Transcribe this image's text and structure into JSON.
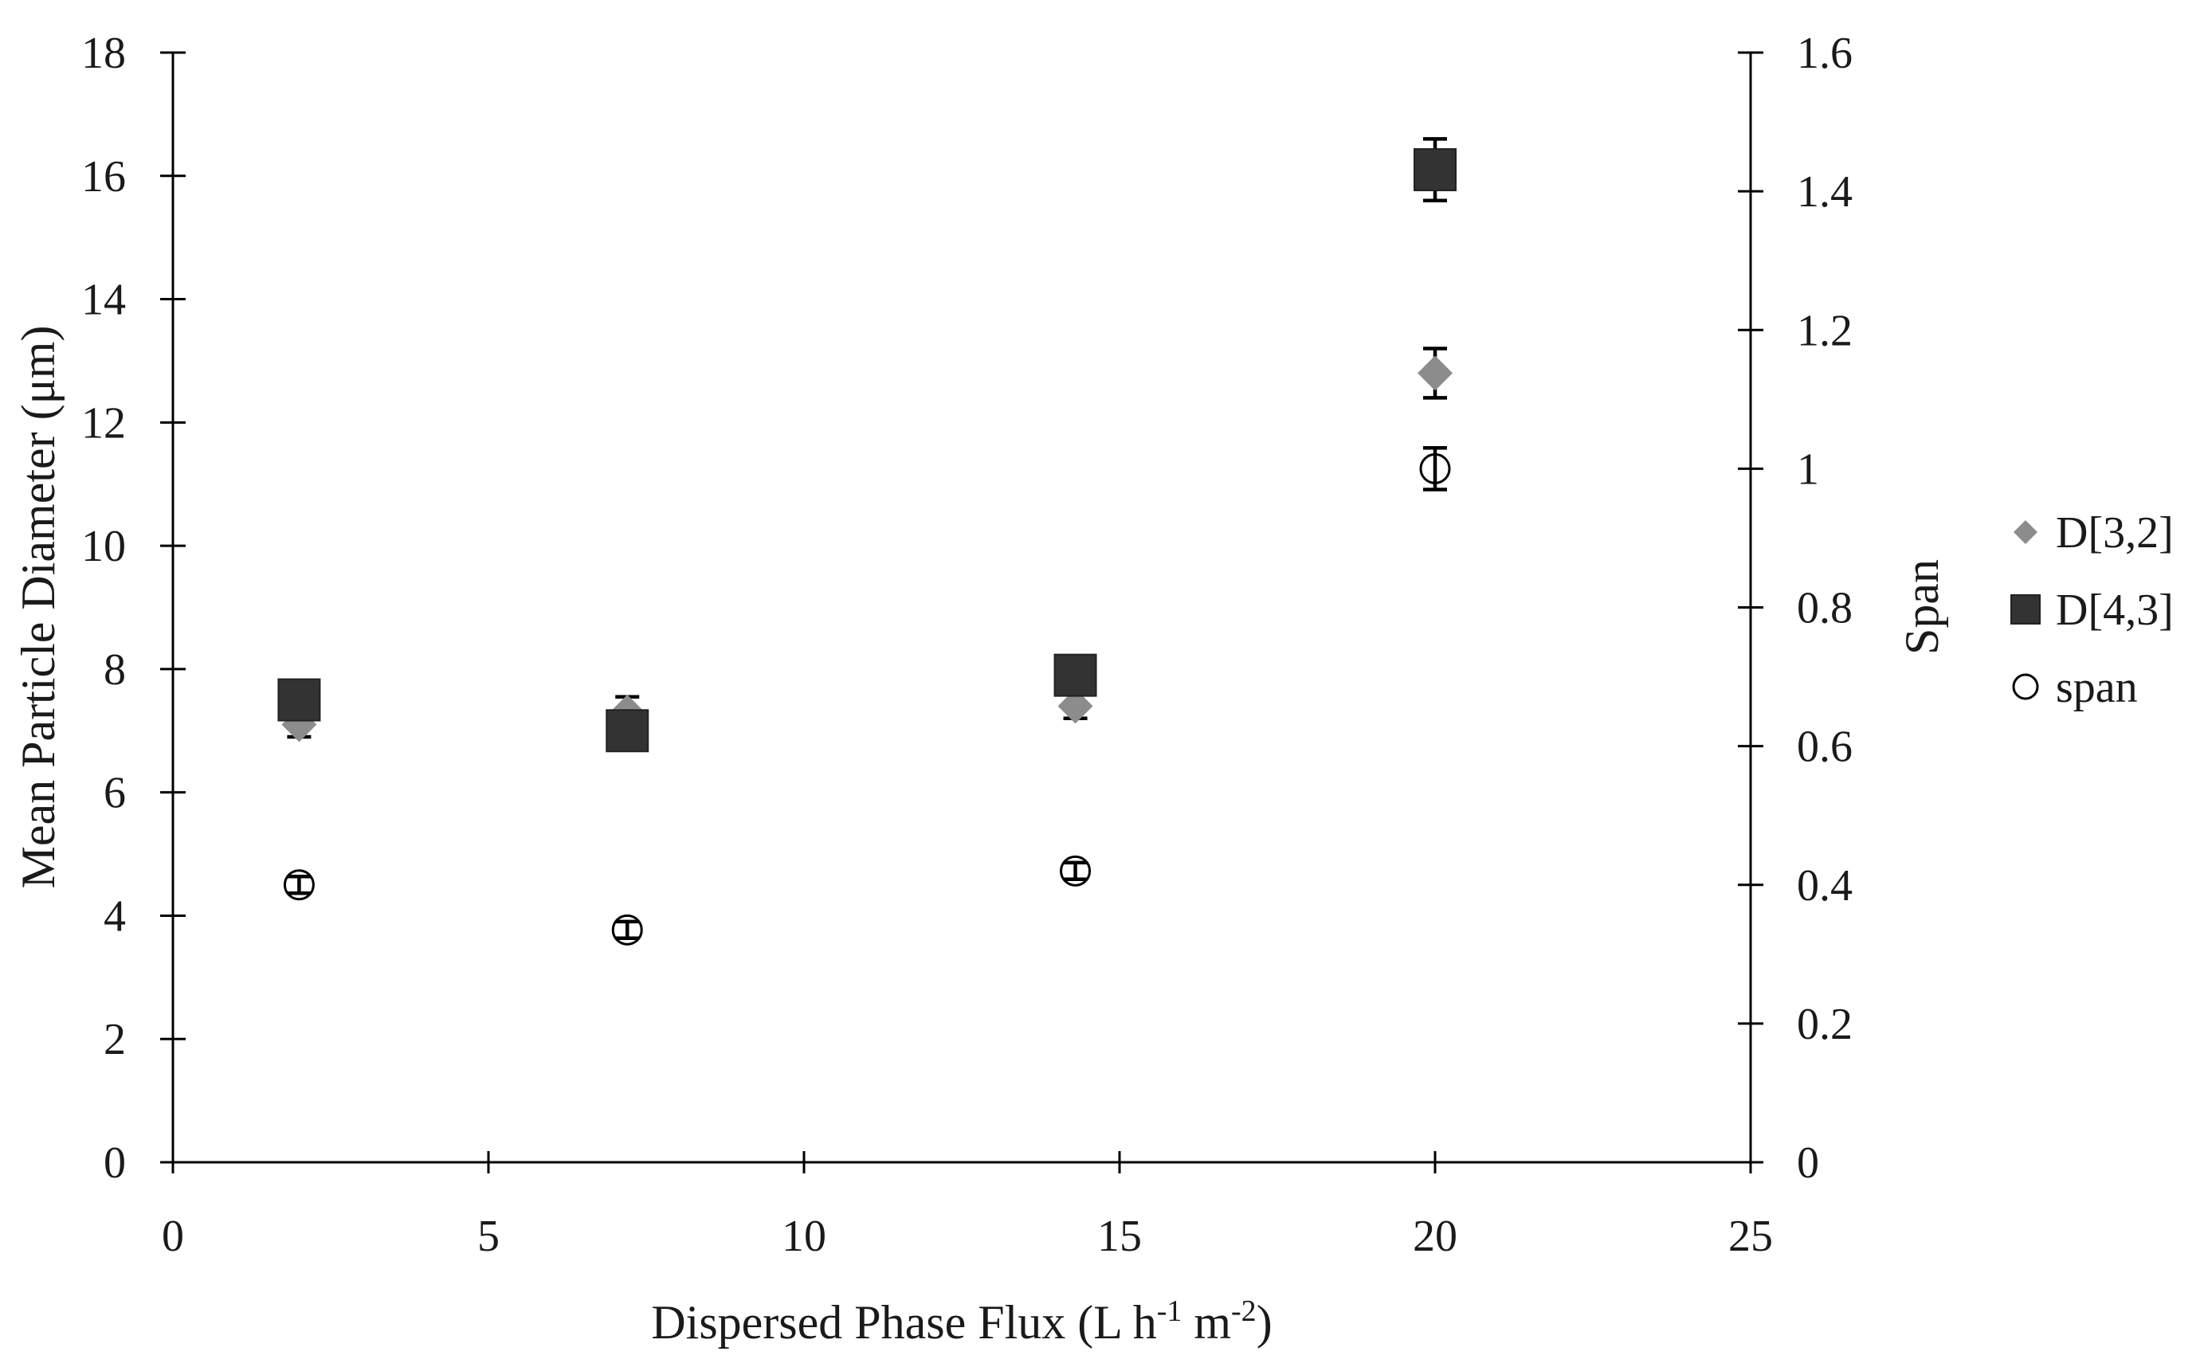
{
  "chart_data": {
    "type": "scatter",
    "xlabel": "Dispersed Phase Flux (L h-1 m-2)",
    "xlabel_parts": {
      "main": "Dispersed Phase Flux (L h",
      "sup1": "-1",
      "mid": " m",
      "sup2": "-2",
      "end": ")"
    },
    "ylabel": "Mean Particle Diameter (μm)",
    "y2label": "Span",
    "xlim": [
      0,
      25
    ],
    "ylim": [
      0,
      18
    ],
    "y2lim": [
      0,
      1.6
    ],
    "x_ticks": [
      "0",
      "5",
      "10",
      "15",
      "20",
      "25"
    ],
    "y_ticks": [
      "0",
      "2",
      "4",
      "6",
      "8",
      "10",
      "12",
      "14",
      "16",
      "18"
    ],
    "y2_ticks": [
      "0",
      "0.2",
      "0.4",
      "0.6",
      "0.8",
      "1",
      "1.2",
      "1.4",
      "1.6"
    ],
    "grid": false,
    "legend_position": "right",
    "series": [
      {
        "name": "D[3,2]",
        "axis": "left",
        "marker": "diamond",
        "color": "#8c8c8c",
        "points": [
          {
            "x": 2.0,
            "y": 7.1,
            "err": 0.2
          },
          {
            "x": 7.2,
            "y": 7.3,
            "err": 0.25
          },
          {
            "x": 14.3,
            "y": 7.4,
            "err": 0.2
          },
          {
            "x": 20.0,
            "y": 12.8,
            "err": 0.4
          }
        ]
      },
      {
        "name": "D[4,3]",
        "axis": "left",
        "marker": "square",
        "color": "#333333",
        "points": [
          {
            "x": 2.0,
            "y": 7.5,
            "err": 0.15
          },
          {
            "x": 7.2,
            "y": 7.0,
            "err": 0.15
          },
          {
            "x": 14.3,
            "y": 7.9,
            "err": 0.15
          },
          {
            "x": 20.0,
            "y": 16.1,
            "err": 0.5
          }
        ]
      },
      {
        "name": "span",
        "axis": "right",
        "marker": "circle",
        "color": "#ffffff",
        "points": [
          {
            "x": 2.0,
            "y": 0.4,
            "err": 0.012
          },
          {
            "x": 7.2,
            "y": 0.335,
            "err": 0.012
          },
          {
            "x": 14.3,
            "y": 0.42,
            "err": 0.012
          },
          {
            "x": 20.0,
            "y": 1.0,
            "err": 0.03
          }
        ]
      }
    ]
  }
}
